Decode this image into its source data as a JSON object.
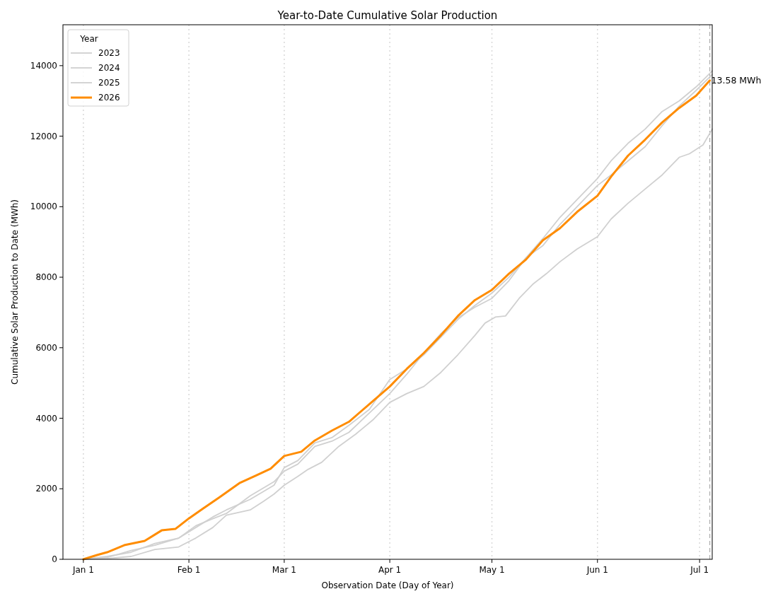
{
  "chart_data": {
    "type": "line",
    "title": "Year-to-Date Cumulative Solar Production",
    "xlabel": "Observation Date (Day of Year)",
    "ylabel": "Cumulative Solar Production to Date (MWh)",
    "legend_title": "Year",
    "legend": "top left",
    "grid": "x",
    "xlim": [
      "2025-12-26",
      "2026-07-04T17:00"
    ],
    "ylim": [
      0,
      15160
    ],
    "xticks": [
      {
        "value": "2026-01-01",
        "label": "Jan 1"
      },
      {
        "value": "2026-02-01",
        "label": "Feb 1"
      },
      {
        "value": "2026-03-01",
        "label": "Mar 1"
      },
      {
        "value": "2026-04-01",
        "label": "Apr 1"
      },
      {
        "value": "2026-05-01",
        "label": "May 1"
      },
      {
        "value": "2026-06-01",
        "label": "Jun 1"
      },
      {
        "value": "2026-07-01",
        "label": "Jul 1"
      }
    ],
    "yticks": [
      0,
      2000,
      4000,
      6000,
      8000,
      10000,
      12000,
      14000
    ],
    "ref_lines": [
      {
        "axis": "x",
        "value": "2026-07-04",
        "label": null,
        "color": "#aaaaaa",
        "line_style": "dashed"
      }
    ],
    "annotations": [
      {
        "text": "13.58 MWh",
        "x": "2026-07-04",
        "y": 13580
      }
    ],
    "series": [
      {
        "name": "2023",
        "color": "#d0d0d0",
        "x": [
          "2026-01-01",
          "2026-01-08",
          "2026-01-15",
          "2026-01-22",
          "2026-01-29",
          "2026-02-03",
          "2026-02-08",
          "2026-02-12",
          "2026-02-19",
          "2026-02-23",
          "2026-02-26",
          "2026-03-01",
          "2026-03-05",
          "2026-03-08",
          "2026-03-12",
          "2026-03-17",
          "2026-03-22",
          "2026-03-27",
          "2026-04-01",
          "2026-04-06",
          "2026-04-11",
          "2026-04-16",
          "2026-04-21",
          "2026-04-26",
          "2026-04-29",
          "2026-05-02",
          "2026-05-05",
          "2026-05-09",
          "2026-05-13",
          "2026-05-17",
          "2026-05-21",
          "2026-05-26",
          "2026-06-01",
          "2026-06-05",
          "2026-06-10",
          "2026-06-15",
          "2026-06-20",
          "2026-06-25",
          "2026-06-28",
          "2026-07-02",
          "2026-07-04T17:00"
        ],
        "values": [
          0,
          20,
          80,
          280,
          350,
          600,
          900,
          1250,
          1400,
          1650,
          1850,
          2100,
          2350,
          2550,
          2750,
          3200,
          3550,
          3950,
          4450,
          4700,
          4900,
          5300,
          5800,
          6350,
          6700,
          6870,
          6900,
          7400,
          7800,
          8100,
          8440,
          8800,
          9150,
          9650,
          10100,
          10500,
          10900,
          11400,
          11500,
          11750,
          12200
        ]
      },
      {
        "name": "2024",
        "color": "#d0d0d0",
        "x": [
          "2026-01-01",
          "2026-01-08",
          "2026-01-15",
          "2026-01-22",
          "2026-01-29",
          "2026-02-03",
          "2026-02-08",
          "2026-02-12",
          "2026-02-19",
          "2026-02-26",
          "2026-03-01",
          "2026-03-05",
          "2026-03-10",
          "2026-03-15",
          "2026-03-20",
          "2026-03-26",
          "2026-04-01",
          "2026-04-06",
          "2026-04-11",
          "2026-04-16",
          "2026-04-21",
          "2026-04-26",
          "2026-05-01",
          "2026-05-06",
          "2026-05-11",
          "2026-05-16",
          "2026-05-21",
          "2026-05-26",
          "2026-06-01",
          "2026-06-05",
          "2026-06-10",
          "2026-06-15",
          "2026-06-20",
          "2026-06-25",
          "2026-06-30",
          "2026-07-04T17:00"
        ],
        "values": [
          0,
          80,
          200,
          450,
          600,
          900,
          1200,
          1400,
          1700,
          2100,
          2600,
          2800,
          3300,
          3450,
          3800,
          4250,
          5100,
          5400,
          5800,
          6300,
          6800,
          7200,
          7550,
          8000,
          8550,
          9100,
          9700,
          10200,
          10800,
          11300,
          11800,
          12200,
          12700,
          13000,
          13400,
          13850
        ]
      },
      {
        "name": "2025",
        "color": "#d0d0d0",
        "x": [
          "2026-01-01",
          "2026-01-08",
          "2026-01-15",
          "2026-01-22",
          "2026-01-29",
          "2026-02-03",
          "2026-02-08",
          "2026-02-12",
          "2026-02-19",
          "2026-02-26",
          "2026-03-01",
          "2026-03-05",
          "2026-03-10",
          "2026-03-15",
          "2026-03-20",
          "2026-03-26",
          "2026-04-01",
          "2026-04-06",
          "2026-04-11",
          "2026-04-16",
          "2026-04-21",
          "2026-04-26",
          "2026-05-01",
          "2026-05-06",
          "2026-05-11",
          "2026-05-16",
          "2026-05-21",
          "2026-05-26",
          "2026-06-01",
          "2026-06-05",
          "2026-06-10",
          "2026-06-15",
          "2026-06-20",
          "2026-06-25",
          "2026-06-30",
          "2026-07-04T17:00"
        ],
        "values": [
          0,
          50,
          250,
          400,
          600,
          950,
          1150,
          1300,
          1800,
          2200,
          2500,
          2700,
          3200,
          3350,
          3600,
          4150,
          4700,
          5250,
          5850,
          6400,
          6850,
          7150,
          7400,
          7900,
          8550,
          8900,
          9500,
          10000,
          10600,
          10900,
          11300,
          11700,
          12300,
          12850,
          13300,
          13750
        ]
      },
      {
        "name": "2026",
        "color": "#ff8c00",
        "x": [
          "2026-01-01",
          "2026-01-05",
          "2026-01-08",
          "2026-01-13",
          "2026-01-19",
          "2026-01-24",
          "2026-01-28",
          "2026-02-01",
          "2026-02-05",
          "2026-02-10",
          "2026-02-16",
          "2026-02-21",
          "2026-02-25",
          "2026-03-01",
          "2026-03-06",
          "2026-03-10",
          "2026-03-15",
          "2026-03-20",
          "2026-03-26",
          "2026-04-01",
          "2026-04-06",
          "2026-04-11",
          "2026-04-16",
          "2026-04-21",
          "2026-04-26",
          "2026-05-01",
          "2026-05-06",
          "2026-05-11",
          "2026-05-16",
          "2026-05-21",
          "2026-05-26",
          "2026-06-01",
          "2026-06-05",
          "2026-06-10",
          "2026-06-15",
          "2026-06-20",
          "2026-06-25",
          "2026-06-30",
          "2026-07-04"
        ],
        "values": [
          0,
          120,
          200,
          400,
          520,
          820,
          860,
          1160,
          1430,
          1760,
          2170,
          2390,
          2570,
          2930,
          3050,
          3370,
          3650,
          3900,
          4400,
          4900,
          5400,
          5850,
          6350,
          6900,
          7350,
          7640,
          8100,
          8500,
          9050,
          9390,
          9850,
          10310,
          10850,
          11450,
          11900,
          12390,
          12800,
          13150,
          13580
        ]
      }
    ]
  }
}
